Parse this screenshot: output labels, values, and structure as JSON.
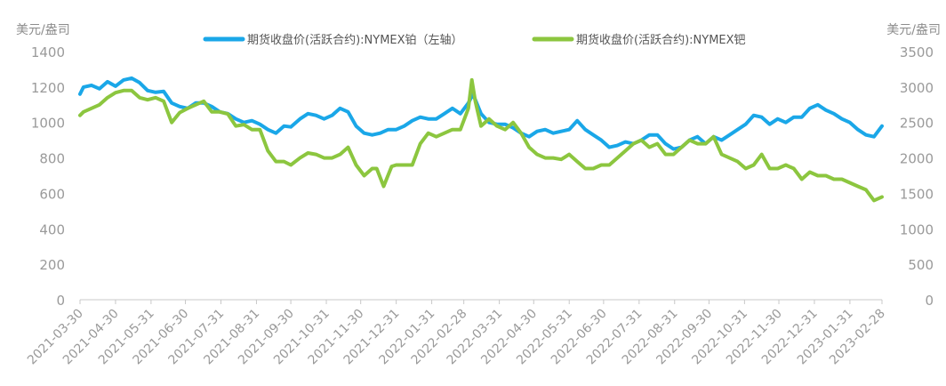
{
  "chart_data": {
    "type": "line",
    "title": "",
    "left_unit": "美元/盎司",
    "right_unit": "美元/盎司",
    "legend_position": "top",
    "grid": false,
    "y_left": {
      "min": 0,
      "max": 1400,
      "ticks": [
        "0",
        "200",
        "400",
        "600",
        "800",
        "1000",
        "1200",
        "1400"
      ]
    },
    "y_right": {
      "min": 0,
      "max": 3500,
      "ticks": [
        "0",
        "500",
        "1000",
        "1500",
        "2000",
        "2500",
        "3000",
        "3500"
      ]
    },
    "x_range": [
      "2021-03-30",
      "2023-02-28"
    ],
    "x_ticks": [
      "2021-03-30",
      "2021-04-30",
      "2021-05-31",
      "2021-06-30",
      "2021-07-31",
      "2021-08-31",
      "2021-09-30",
      "2021-10-31",
      "2021-11-30",
      "2021-12-31",
      "2022-01-31",
      "2022-02-28",
      "2022-03-31",
      "2022-04-30",
      "2022-05-31",
      "2022-06-30",
      "2022-07-31",
      "2022-08-31",
      "2022-09-30",
      "2022-10-31",
      "2022-11-30",
      "2022-12-31",
      "2023-01-31",
      "2023-02-28"
    ],
    "series": [
      {
        "name": "期货收盘价(活跃合约):NYMEX铂（左轴）",
        "axis": "left",
        "color": "#1aa7e8",
        "points": [
          [
            "2021-03-30",
            1160
          ],
          [
            "2021-04-02",
            1200
          ],
          [
            "2021-04-09",
            1210
          ],
          [
            "2021-04-16",
            1190
          ],
          [
            "2021-04-23",
            1230
          ],
          [
            "2021-04-30",
            1205
          ],
          [
            "2021-05-07",
            1240
          ],
          [
            "2021-05-14",
            1250
          ],
          [
            "2021-05-21",
            1225
          ],
          [
            "2021-05-28",
            1180
          ],
          [
            "2021-06-04",
            1170
          ],
          [
            "2021-06-11",
            1175
          ],
          [
            "2021-06-18",
            1110
          ],
          [
            "2021-06-25",
            1090
          ],
          [
            "2021-07-02",
            1080
          ],
          [
            "2021-07-09",
            1110
          ],
          [
            "2021-07-16",
            1110
          ],
          [
            "2021-07-23",
            1090
          ],
          [
            "2021-07-30",
            1060
          ],
          [
            "2021-08-06",
            1050
          ],
          [
            "2021-08-13",
            1020
          ],
          [
            "2021-08-20",
            1000
          ],
          [
            "2021-08-27",
            1010
          ],
          [
            "2021-09-03",
            990
          ],
          [
            "2021-09-10",
            960
          ],
          [
            "2021-09-17",
            940
          ],
          [
            "2021-09-24",
            980
          ],
          [
            "2021-09-30",
            975
          ],
          [
            "2021-10-08",
            1020
          ],
          [
            "2021-10-15",
            1050
          ],
          [
            "2021-10-22",
            1040
          ],
          [
            "2021-10-29",
            1020
          ],
          [
            "2021-11-05",
            1040
          ],
          [
            "2021-11-12",
            1080
          ],
          [
            "2021-11-19",
            1060
          ],
          [
            "2021-11-26",
            980
          ],
          [
            "2021-12-03",
            940
          ],
          [
            "2021-12-10",
            930
          ],
          [
            "2021-12-17",
            940
          ],
          [
            "2021-12-24",
            960
          ],
          [
            "2021-12-31",
            960
          ],
          [
            "2022-01-07",
            980
          ],
          [
            "2022-01-14",
            1010
          ],
          [
            "2022-01-21",
            1030
          ],
          [
            "2022-01-28",
            1020
          ],
          [
            "2022-02-04",
            1020
          ],
          [
            "2022-02-11",
            1050
          ],
          [
            "2022-02-18",
            1080
          ],
          [
            "2022-02-25",
            1050
          ],
          [
            "2022-03-04",
            1110
          ],
          [
            "2022-03-08",
            1160
          ],
          [
            "2022-03-15",
            1050
          ],
          [
            "2022-03-22",
            1000
          ],
          [
            "2022-03-29",
            990
          ],
          [
            "2022-04-05",
            990
          ],
          [
            "2022-04-12",
            970
          ],
          [
            "2022-04-19",
            940
          ],
          [
            "2022-04-26",
            920
          ],
          [
            "2022-05-03",
            950
          ],
          [
            "2022-05-10",
            960
          ],
          [
            "2022-05-17",
            940
          ],
          [
            "2022-05-24",
            950
          ],
          [
            "2022-05-31",
            960
          ],
          [
            "2022-06-07",
            1010
          ],
          [
            "2022-06-14",
            960
          ],
          [
            "2022-06-21",
            930
          ],
          [
            "2022-06-28",
            900
          ],
          [
            "2022-07-05",
            860
          ],
          [
            "2022-07-12",
            870
          ],
          [
            "2022-07-19",
            890
          ],
          [
            "2022-07-26",
            880
          ],
          [
            "2022-08-02",
            900
          ],
          [
            "2022-08-09",
            930
          ],
          [
            "2022-08-16",
            930
          ],
          [
            "2022-08-23",
            880
          ],
          [
            "2022-08-30",
            850
          ],
          [
            "2022-09-06",
            860
          ],
          [
            "2022-09-13",
            900
          ],
          [
            "2022-09-20",
            920
          ],
          [
            "2022-09-27",
            880
          ],
          [
            "2022-10-04",
            920
          ],
          [
            "2022-10-11",
            900
          ],
          [
            "2022-10-18",
            930
          ],
          [
            "2022-10-25",
            960
          ],
          [
            "2022-11-01",
            990
          ],
          [
            "2022-11-08",
            1040
          ],
          [
            "2022-11-15",
            1030
          ],
          [
            "2022-11-22",
            990
          ],
          [
            "2022-11-29",
            1020
          ],
          [
            "2022-12-06",
            1000
          ],
          [
            "2022-12-13",
            1030
          ],
          [
            "2022-12-20",
            1030
          ],
          [
            "2022-12-27",
            1080
          ],
          [
            "2023-01-03",
            1100
          ],
          [
            "2023-01-10",
            1070
          ],
          [
            "2023-01-17",
            1050
          ],
          [
            "2023-01-24",
            1020
          ],
          [
            "2023-01-31",
            1000
          ],
          [
            "2023-02-07",
            960
          ],
          [
            "2023-02-14",
            930
          ],
          [
            "2023-02-21",
            920
          ],
          [
            "2023-02-28",
            980
          ]
        ]
      },
      {
        "name": "期货收盘价(活跃合约):NYMEX钯",
        "axis": "right",
        "color": "#8cc63f",
        "points": [
          [
            "2021-03-30",
            2600
          ],
          [
            "2021-04-02",
            2650
          ],
          [
            "2021-04-09",
            2700
          ],
          [
            "2021-04-16",
            2750
          ],
          [
            "2021-04-23",
            2850
          ],
          [
            "2021-04-30",
            2920
          ],
          [
            "2021-05-07",
            2950
          ],
          [
            "2021-05-14",
            2950
          ],
          [
            "2021-05-21",
            2850
          ],
          [
            "2021-05-28",
            2820
          ],
          [
            "2021-06-04",
            2850
          ],
          [
            "2021-06-11",
            2800
          ],
          [
            "2021-06-18",
            2500
          ],
          [
            "2021-06-25",
            2640
          ],
          [
            "2021-07-02",
            2700
          ],
          [
            "2021-07-09",
            2750
          ],
          [
            "2021-07-16",
            2800
          ],
          [
            "2021-07-23",
            2650
          ],
          [
            "2021-07-30",
            2650
          ],
          [
            "2021-08-06",
            2620
          ],
          [
            "2021-08-13",
            2450
          ],
          [
            "2021-08-20",
            2470
          ],
          [
            "2021-08-27",
            2400
          ],
          [
            "2021-09-03",
            2400
          ],
          [
            "2021-09-10",
            2100
          ],
          [
            "2021-09-17",
            1950
          ],
          [
            "2021-09-24",
            1950
          ],
          [
            "2021-09-30",
            1900
          ],
          [
            "2021-10-08",
            2000
          ],
          [
            "2021-10-15",
            2070
          ],
          [
            "2021-10-22",
            2050
          ],
          [
            "2021-10-29",
            2000
          ],
          [
            "2021-11-05",
            2000
          ],
          [
            "2021-11-12",
            2050
          ],
          [
            "2021-11-19",
            2150
          ],
          [
            "2021-11-26",
            1900
          ],
          [
            "2021-12-03",
            1750
          ],
          [
            "2021-12-10",
            1850
          ],
          [
            "2021-12-14",
            1850
          ],
          [
            "2021-12-20",
            1600
          ],
          [
            "2021-12-27",
            1880
          ],
          [
            "2021-12-31",
            1900
          ],
          [
            "2022-01-07",
            1900
          ],
          [
            "2022-01-14",
            1900
          ],
          [
            "2022-01-21",
            2200
          ],
          [
            "2022-01-28",
            2350
          ],
          [
            "2022-02-04",
            2300
          ],
          [
            "2022-02-11",
            2350
          ],
          [
            "2022-02-18",
            2400
          ],
          [
            "2022-02-25",
            2400
          ],
          [
            "2022-03-04",
            2700
          ],
          [
            "2022-03-07",
            3100
          ],
          [
            "2022-03-10",
            2800
          ],
          [
            "2022-03-15",
            2450
          ],
          [
            "2022-03-22",
            2550
          ],
          [
            "2022-03-29",
            2450
          ],
          [
            "2022-04-05",
            2400
          ],
          [
            "2022-04-12",
            2500
          ],
          [
            "2022-04-19",
            2350
          ],
          [
            "2022-04-26",
            2150
          ],
          [
            "2022-05-03",
            2050
          ],
          [
            "2022-05-10",
            2000
          ],
          [
            "2022-05-17",
            2000
          ],
          [
            "2022-05-24",
            1980
          ],
          [
            "2022-05-31",
            2050
          ],
          [
            "2022-06-07",
            1950
          ],
          [
            "2022-06-14",
            1850
          ],
          [
            "2022-06-21",
            1850
          ],
          [
            "2022-06-28",
            1900
          ],
          [
            "2022-07-05",
            1900
          ],
          [
            "2022-07-12",
            2000
          ],
          [
            "2022-07-19",
            2100
          ],
          [
            "2022-07-26",
            2200
          ],
          [
            "2022-08-02",
            2250
          ],
          [
            "2022-08-09",
            2150
          ],
          [
            "2022-08-16",
            2200
          ],
          [
            "2022-08-23",
            2050
          ],
          [
            "2022-08-30",
            2050
          ],
          [
            "2022-09-06",
            2150
          ],
          [
            "2022-09-13",
            2250
          ],
          [
            "2022-09-20",
            2200
          ],
          [
            "2022-09-27",
            2200
          ],
          [
            "2022-10-04",
            2300
          ],
          [
            "2022-10-11",
            2050
          ],
          [
            "2022-10-18",
            2000
          ],
          [
            "2022-10-25",
            1950
          ],
          [
            "2022-11-01",
            1850
          ],
          [
            "2022-11-08",
            1900
          ],
          [
            "2022-11-15",
            2050
          ],
          [
            "2022-11-22",
            1850
          ],
          [
            "2022-11-29",
            1850
          ],
          [
            "2022-12-06",
            1900
          ],
          [
            "2022-12-13",
            1850
          ],
          [
            "2022-12-20",
            1700
          ],
          [
            "2022-12-27",
            1800
          ],
          [
            "2023-01-03",
            1750
          ],
          [
            "2023-01-10",
            1750
          ],
          [
            "2023-01-17",
            1700
          ],
          [
            "2023-01-24",
            1700
          ],
          [
            "2023-01-31",
            1650
          ],
          [
            "2023-02-07",
            1600
          ],
          [
            "2023-02-14",
            1550
          ],
          [
            "2023-02-21",
            1400
          ],
          [
            "2023-02-28",
            1450
          ]
        ]
      }
    ]
  }
}
